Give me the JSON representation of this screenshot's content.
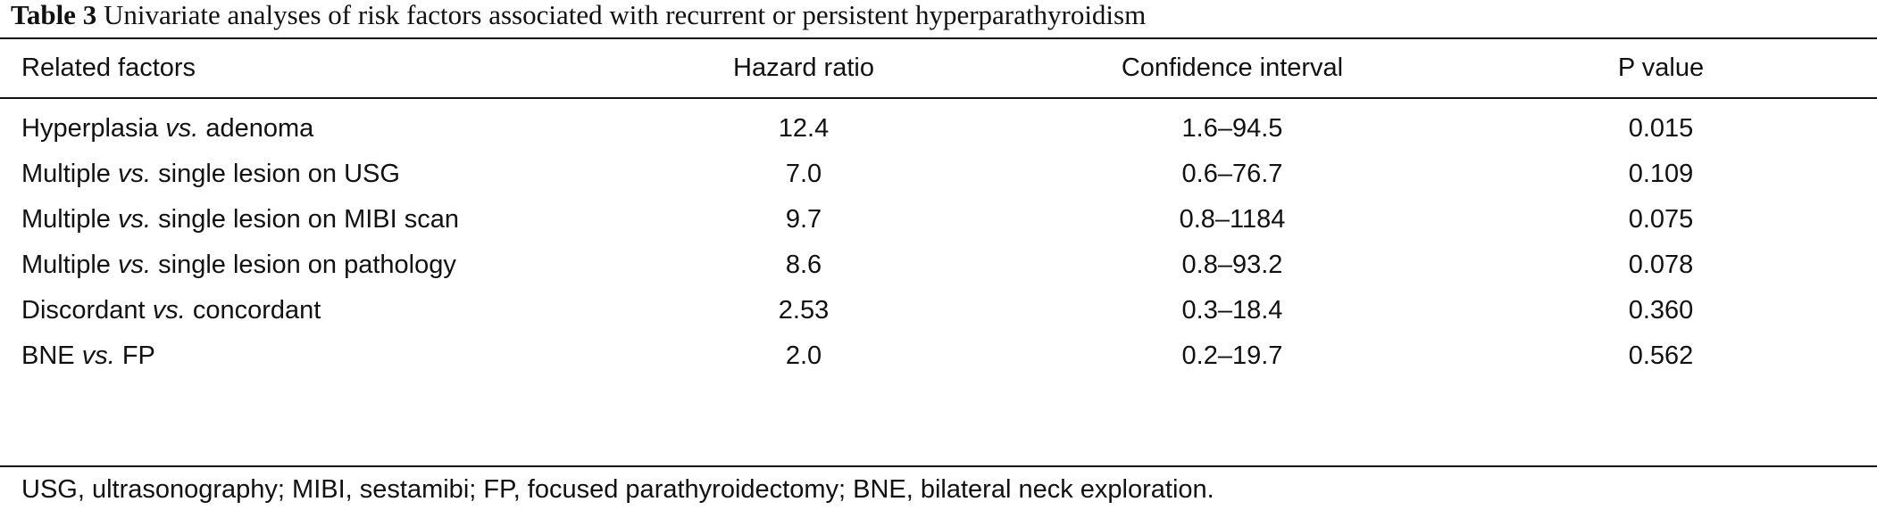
{
  "caption": {
    "label": "Table 3",
    "text": "Univariate analyses of risk factors associated with recurrent or persistent hyperparathyroidism"
  },
  "header": {
    "factor": "Related factors",
    "hazard_ratio": "Hazard ratio",
    "confidence_interval": "Confidence interval",
    "p_value": "P value"
  },
  "rows": [
    {
      "factor_a": "Hyperplasia",
      "vs": "vs.",
      "factor_b": "adenoma",
      "hazard_ratio": "12.4",
      "confidence_interval": "1.6–94.5",
      "p_value": "0.015"
    },
    {
      "factor_a": "Multiple",
      "vs": "vs.",
      "factor_b": "single lesion on USG",
      "hazard_ratio": "7.0",
      "confidence_interval": "0.6–76.7",
      "p_value": "0.109"
    },
    {
      "factor_a": "Multiple",
      "vs": "vs.",
      "factor_b": "single lesion on MIBI scan",
      "hazard_ratio": "9.7",
      "confidence_interval": "0.8–1184",
      "p_value": "0.075"
    },
    {
      "factor_a": "Multiple",
      "vs": "vs.",
      "factor_b": "single lesion on pathology",
      "hazard_ratio": "8.6",
      "confidence_interval": "0.8–93.2",
      "p_value": "0.078"
    },
    {
      "factor_a": "Discordant",
      "vs": "vs.",
      "factor_b": "concordant",
      "hazard_ratio": "2.53",
      "confidence_interval": "0.3–18.4",
      "p_value": "0.360"
    },
    {
      "factor_a": "BNE",
      "vs": "vs.",
      "factor_b": "FP",
      "hazard_ratio": "2.0",
      "confidence_interval": "0.2–19.7",
      "p_value": "0.562"
    }
  ],
  "footnote": "USG, ultrasonography; MIBI, sestamibi; FP, focused parathyroidectomy; BNE, bilateral neck exploration."
}
